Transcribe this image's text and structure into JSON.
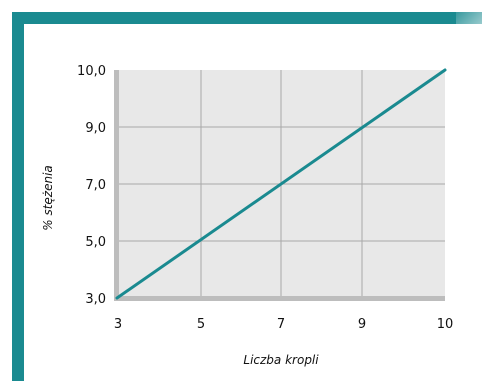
{
  "chart_data": {
    "type": "line",
    "title": "",
    "xlabel": "Liczba kropli",
    "ylabel": "% stężenia",
    "x_ticks": [
      "3",
      "5",
      "7",
      "9",
      "10"
    ],
    "y_ticks": [
      "3,0",
      "5,0",
      "7,0",
      "9,0",
      "10,0"
    ],
    "series": [
      {
        "x": [
          3,
          10
        ],
        "y": [
          3.0,
          10.0
        ]
      }
    ],
    "grid": true,
    "colors": {
      "line": "#1a8a90",
      "plot_bg": "#e8e8e8",
      "grid": "#a8a8a8",
      "axis": "#bdbdbd",
      "frame": "#1a8a90"
    }
  }
}
